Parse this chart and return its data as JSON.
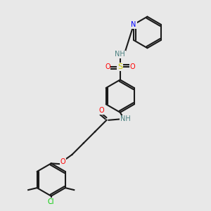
{
  "bg_color": "#e8e8e8",
  "bond_color": "#1a1a1a",
  "atom_colors": {
    "N": "#0000ff",
    "O": "#ff0000",
    "S": "#cccc00",
    "Cl": "#00cc00",
    "NH": "#4a8080",
    "C": "#1a1a1a"
  },
  "figsize": [
    3.0,
    3.0
  ],
  "dpi": 100
}
